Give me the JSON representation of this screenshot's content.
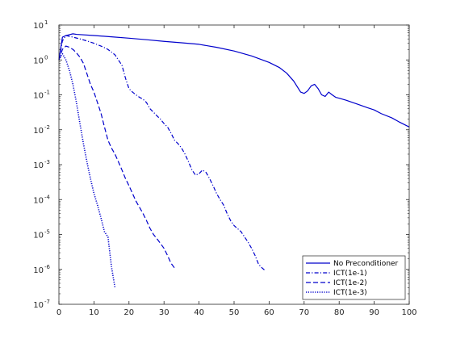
{
  "chart_data": {
    "type": "line",
    "title": "",
    "xlabel": "",
    "ylabel": "",
    "xlim": [
      0,
      100
    ],
    "ylim": [
      1e-07,
      10
    ],
    "yscale": "log",
    "grid": false,
    "legend_position": "bottom-right",
    "x_ticks": [
      0,
      10,
      20,
      30,
      40,
      50,
      60,
      70,
      80,
      90,
      100
    ],
    "y_ticks": [
      {
        "value": 1e-07,
        "base": "10",
        "exp": "-7"
      },
      {
        "value": 1e-06,
        "base": "10",
        "exp": "-6"
      },
      {
        "value": 1e-05,
        "base": "10",
        "exp": "-5"
      },
      {
        "value": 0.0001,
        "base": "10",
        "exp": "-4"
      },
      {
        "value": 0.001,
        "base": "10",
        "exp": "-3"
      },
      {
        "value": 0.01,
        "base": "10",
        "exp": "-2"
      },
      {
        "value": 0.1,
        "base": "10",
        "exp": "-1"
      },
      {
        "value": 1,
        "base": "10",
        "exp": "0"
      },
      {
        "value": 10,
        "base": "10",
        "exp": "1"
      }
    ],
    "series": [
      {
        "name": "No Preconditioner",
        "color": "#0000cc",
        "dash": "solid",
        "points": [
          [
            0,
            1.0
          ],
          [
            1,
            4.5
          ],
          [
            2,
            5.0
          ],
          [
            3,
            5.3
          ],
          [
            4,
            5.6
          ],
          [
            5,
            5.4
          ],
          [
            10,
            5.0
          ],
          [
            15,
            4.6
          ],
          [
            20,
            4.2
          ],
          [
            25,
            3.8
          ],
          [
            30,
            3.4
          ],
          [
            35,
            3.1
          ],
          [
            40,
            2.8
          ],
          [
            45,
            2.3
          ],
          [
            50,
            1.8
          ],
          [
            55,
            1.3
          ],
          [
            60,
            0.85
          ],
          [
            63,
            0.6
          ],
          [
            65,
            0.42
          ],
          [
            67,
            0.25
          ],
          [
            69,
            0.12
          ],
          [
            70,
            0.11
          ],
          [
            71,
            0.13
          ],
          [
            72,
            0.18
          ],
          [
            73,
            0.2
          ],
          [
            74,
            0.15
          ],
          [
            75,
            0.1
          ],
          [
            76,
            0.09
          ],
          [
            77,
            0.12
          ],
          [
            78,
            0.1
          ],
          [
            79,
            0.085
          ],
          [
            80,
            0.08
          ],
          [
            82,
            0.07
          ],
          [
            85,
            0.055
          ],
          [
            88,
            0.043
          ],
          [
            90,
            0.037
          ],
          [
            92,
            0.029
          ],
          [
            95,
            0.022
          ],
          [
            97,
            0.017
          ],
          [
            100,
            0.012
          ]
        ]
      },
      {
        "name": "ICT(1e-1)",
        "color": "#0000cc",
        "dash": "dashdot",
        "points": [
          [
            0,
            1.0
          ],
          [
            1,
            3.5
          ],
          [
            2,
            5.0
          ],
          [
            4,
            4.5
          ],
          [
            6,
            4.0
          ],
          [
            8,
            3.5
          ],
          [
            10,
            3.0
          ],
          [
            12,
            2.5
          ],
          [
            14,
            2.0
          ],
          [
            16,
            1.4
          ],
          [
            18,
            0.7
          ],
          [
            19,
            0.3
          ],
          [
            20,
            0.15
          ],
          [
            21,
            0.12
          ],
          [
            22,
            0.1
          ],
          [
            23,
            0.085
          ],
          [
            24,
            0.075
          ],
          [
            25,
            0.06
          ],
          [
            26,
            0.04
          ],
          [
            28,
            0.025
          ],
          [
            29,
            0.02
          ],
          [
            30,
            0.015
          ],
          [
            31,
            0.012
          ],
          [
            32,
            0.008
          ],
          [
            33,
            0.005
          ],
          [
            34,
            0.004
          ],
          [
            35,
            0.003
          ],
          [
            36,
            0.002
          ],
          [
            37,
            0.0012
          ],
          [
            38,
            0.0007
          ],
          [
            39,
            0.0005
          ],
          [
            40,
            0.00055
          ],
          [
            41,
            0.0007
          ],
          [
            42,
            0.0006
          ],
          [
            43,
            0.0004
          ],
          [
            44,
            0.00025
          ],
          [
            45,
            0.00015
          ],
          [
            46,
            0.0001
          ],
          [
            47,
            7e-05
          ],
          [
            48,
            4e-05
          ],
          [
            49,
            2.5e-05
          ],
          [
            50,
            1.8e-05
          ],
          [
            52,
            1.2e-05
          ],
          [
            54,
            6e-06
          ],
          [
            55,
            4e-06
          ],
          [
            56,
            2.5e-06
          ],
          [
            57,
            1.4e-06
          ],
          [
            58,
            1.1e-06
          ],
          [
            59,
            9e-07
          ]
        ]
      },
      {
        "name": "ICT(1e-2)",
        "color": "#0000cc",
        "dash": "dashed",
        "points": [
          [
            0,
            1.0
          ],
          [
            1,
            2.0
          ],
          [
            2,
            2.5
          ],
          [
            3,
            2.3
          ],
          [
            4,
            2.0
          ],
          [
            5,
            1.6
          ],
          [
            6,
            1.2
          ],
          [
            7,
            0.8
          ],
          [
            8,
            0.4
          ],
          [
            9,
            0.2
          ],
          [
            10,
            0.12
          ],
          [
            11,
            0.06
          ],
          [
            12,
            0.03
          ],
          [
            13,
            0.012
          ],
          [
            14,
            0.005
          ],
          [
            15,
            0.003
          ],
          [
            16,
            0.002
          ],
          [
            17,
            0.0012
          ],
          [
            18,
            0.0007
          ],
          [
            19,
            0.0004
          ],
          [
            20,
            0.00025
          ],
          [
            21,
            0.00015
          ],
          [
            22,
            9e-05
          ],
          [
            23,
            6e-05
          ],
          [
            24,
            4e-05
          ],
          [
            25,
            2.5e-05
          ],
          [
            26,
            1.5e-05
          ],
          [
            27,
            1e-05
          ],
          [
            28,
            7.5e-06
          ],
          [
            29,
            5.5e-06
          ],
          [
            30,
            4e-06
          ],
          [
            31,
            2.5e-06
          ],
          [
            32,
            1.5e-06
          ],
          [
            33,
            1.1e-06
          ]
        ]
      },
      {
        "name": "ICT(1e-3)",
        "color": "#0000cc",
        "dash": "dotted",
        "points": [
          [
            0,
            1.0
          ],
          [
            1,
            1.5
          ],
          [
            2,
            1.0
          ],
          [
            3,
            0.5
          ],
          [
            4,
            0.2
          ],
          [
            5,
            0.06
          ],
          [
            6,
            0.015
          ],
          [
            7,
            0.004
          ],
          [
            8,
            0.0012
          ],
          [
            9,
            0.0004
          ],
          [
            10,
            0.00015
          ],
          [
            11,
            7e-05
          ],
          [
            12,
            3e-05
          ],
          [
            13,
            1.2e-05
          ],
          [
            14,
            8.5e-06
          ],
          [
            15,
            1.2e-06
          ],
          [
            16,
            3e-07
          ]
        ]
      }
    ]
  }
}
